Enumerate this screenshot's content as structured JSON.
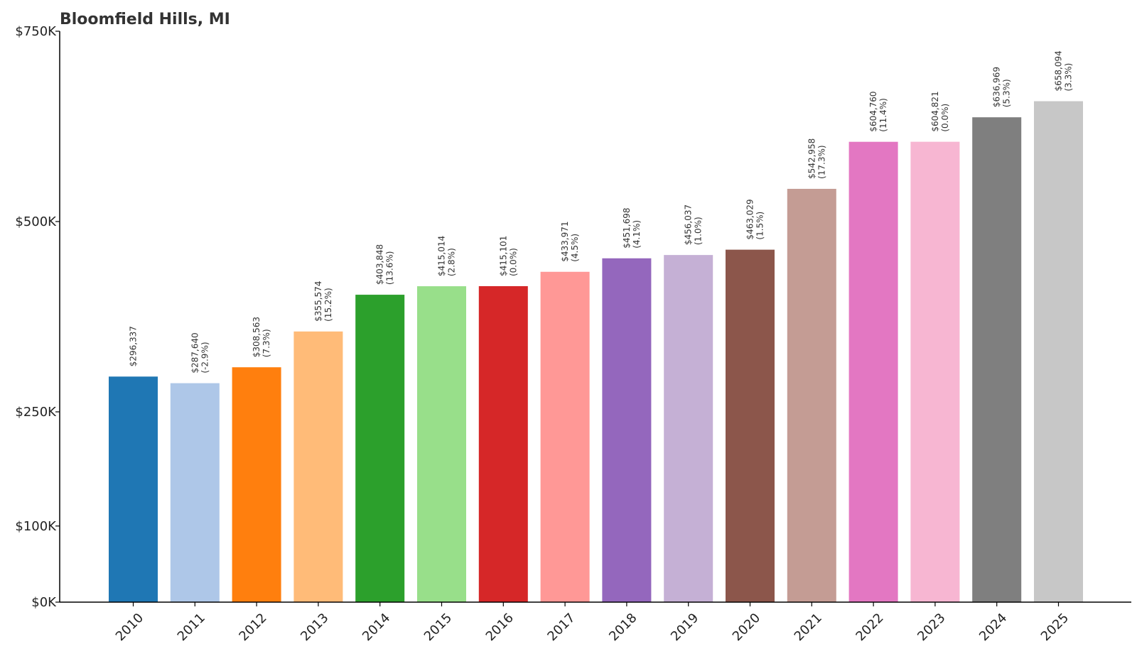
{
  "chart_data": {
    "type": "bar",
    "title": "Bloomfield Hills, MI",
    "xlabel": "",
    "ylabel": "",
    "ylim": [
      0,
      750000
    ],
    "yticks": [
      {
        "value": 0,
        "label": "$0K"
      },
      {
        "value": 100000,
        "label": "$100K"
      },
      {
        "value": 250000,
        "label": "$250K"
      },
      {
        "value": 500000,
        "label": "$500K"
      },
      {
        "value": 750000,
        "label": "$750K"
      }
    ],
    "grid": false,
    "categories": [
      "2010",
      "2011",
      "2012",
      "2013",
      "2014",
      "2015",
      "2016",
      "2017",
      "2018",
      "2019",
      "2020",
      "2021",
      "2022",
      "2023",
      "2024",
      "2025"
    ],
    "values": [
      296337,
      287640,
      308563,
      355574,
      403848,
      415014,
      415101,
      433971,
      451698,
      456037,
      463029,
      542958,
      604760,
      604821,
      636969,
      658094
    ],
    "value_labels": [
      "$296,337",
      "$287,640",
      "$308,563",
      "$355,574",
      "$403,848",
      "$415,014",
      "$415,101",
      "$433,971",
      "$451,698",
      "$456,037",
      "$463,029",
      "$542,958",
      "$604,760",
      "$604,821",
      "$636,969",
      "$658,094"
    ],
    "change_labels": [
      "",
      "(-2.9%)",
      "(7.3%)",
      "(15.2%)",
      "(13.6%)",
      "(2.8%)",
      "(0.0%)",
      "(4.5%)",
      "(4.1%)",
      "(1.0%)",
      "(1.5%)",
      "(17.3%)",
      "(11.4%)",
      "(0.0%)",
      "(5.3%)",
      "(3.3%)"
    ],
    "colors": [
      "#1f77b4",
      "#aec7e8",
      "#ff7f0e",
      "#ffbb78",
      "#2ca02c",
      "#98df8a",
      "#d62728",
      "#ff9896",
      "#9467bd",
      "#c5b0d5",
      "#8c564b",
      "#c49c94",
      "#e377c2",
      "#f7b6d2",
      "#7f7f7f",
      "#c7c7c7"
    ]
  }
}
